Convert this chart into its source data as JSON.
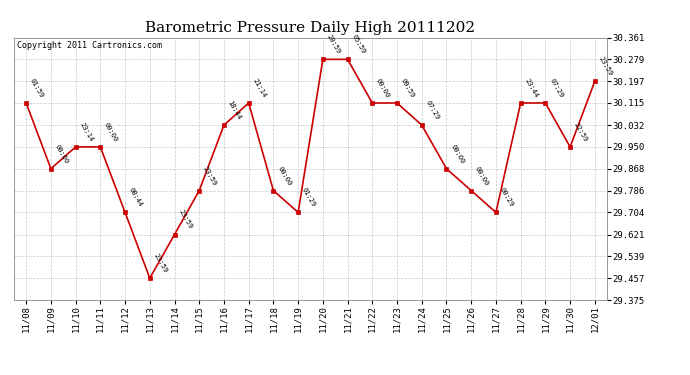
{
  "title": "Barometric Pressure Daily High 20111202",
  "copyright": "Copyright 2011 Cartronics.com",
  "x_labels": [
    "11/08",
    "11/09",
    "11/10",
    "11/11",
    "11/12",
    "11/13",
    "11/14",
    "11/15",
    "11/16",
    "11/17",
    "11/18",
    "11/19",
    "11/20",
    "11/21",
    "11/22",
    "11/23",
    "11/24",
    "11/25",
    "11/26",
    "11/27",
    "11/28",
    "11/29",
    "11/30",
    "12/01"
  ],
  "y_values": [
    30.115,
    29.868,
    29.95,
    29.95,
    29.704,
    29.457,
    29.621,
    29.786,
    30.032,
    30.115,
    29.786,
    29.704,
    30.279,
    30.279,
    30.115,
    30.115,
    30.032,
    29.868,
    29.786,
    29.704,
    30.115,
    30.115,
    29.95,
    30.197
  ],
  "time_labels": [
    "01:59",
    "00:00",
    "23:14",
    "00:00",
    "08:44",
    "23:59",
    "23:59",
    "23:59",
    "18:44",
    "21:14",
    "00:00",
    "01:29",
    "20:59",
    "05:59",
    "00:00",
    "09:59",
    "07:29",
    "00:00",
    "00:00",
    "00:29",
    "23:44",
    "07:29",
    "22:59",
    "23:59"
  ],
  "y_min": 29.375,
  "y_max": 30.361,
  "y_ticks": [
    29.375,
    29.457,
    29.539,
    29.621,
    29.704,
    29.786,
    29.868,
    29.95,
    30.032,
    30.115,
    30.197,
    30.279,
    30.361
  ],
  "line_color": "#cc0000",
  "marker_color": "#cc0000",
  "bg_color": "#ffffff",
  "grid_color": "#b0b0b0",
  "title_fontsize": 11,
  "tick_fontsize": 6.5,
  "copyright_fontsize": 6
}
